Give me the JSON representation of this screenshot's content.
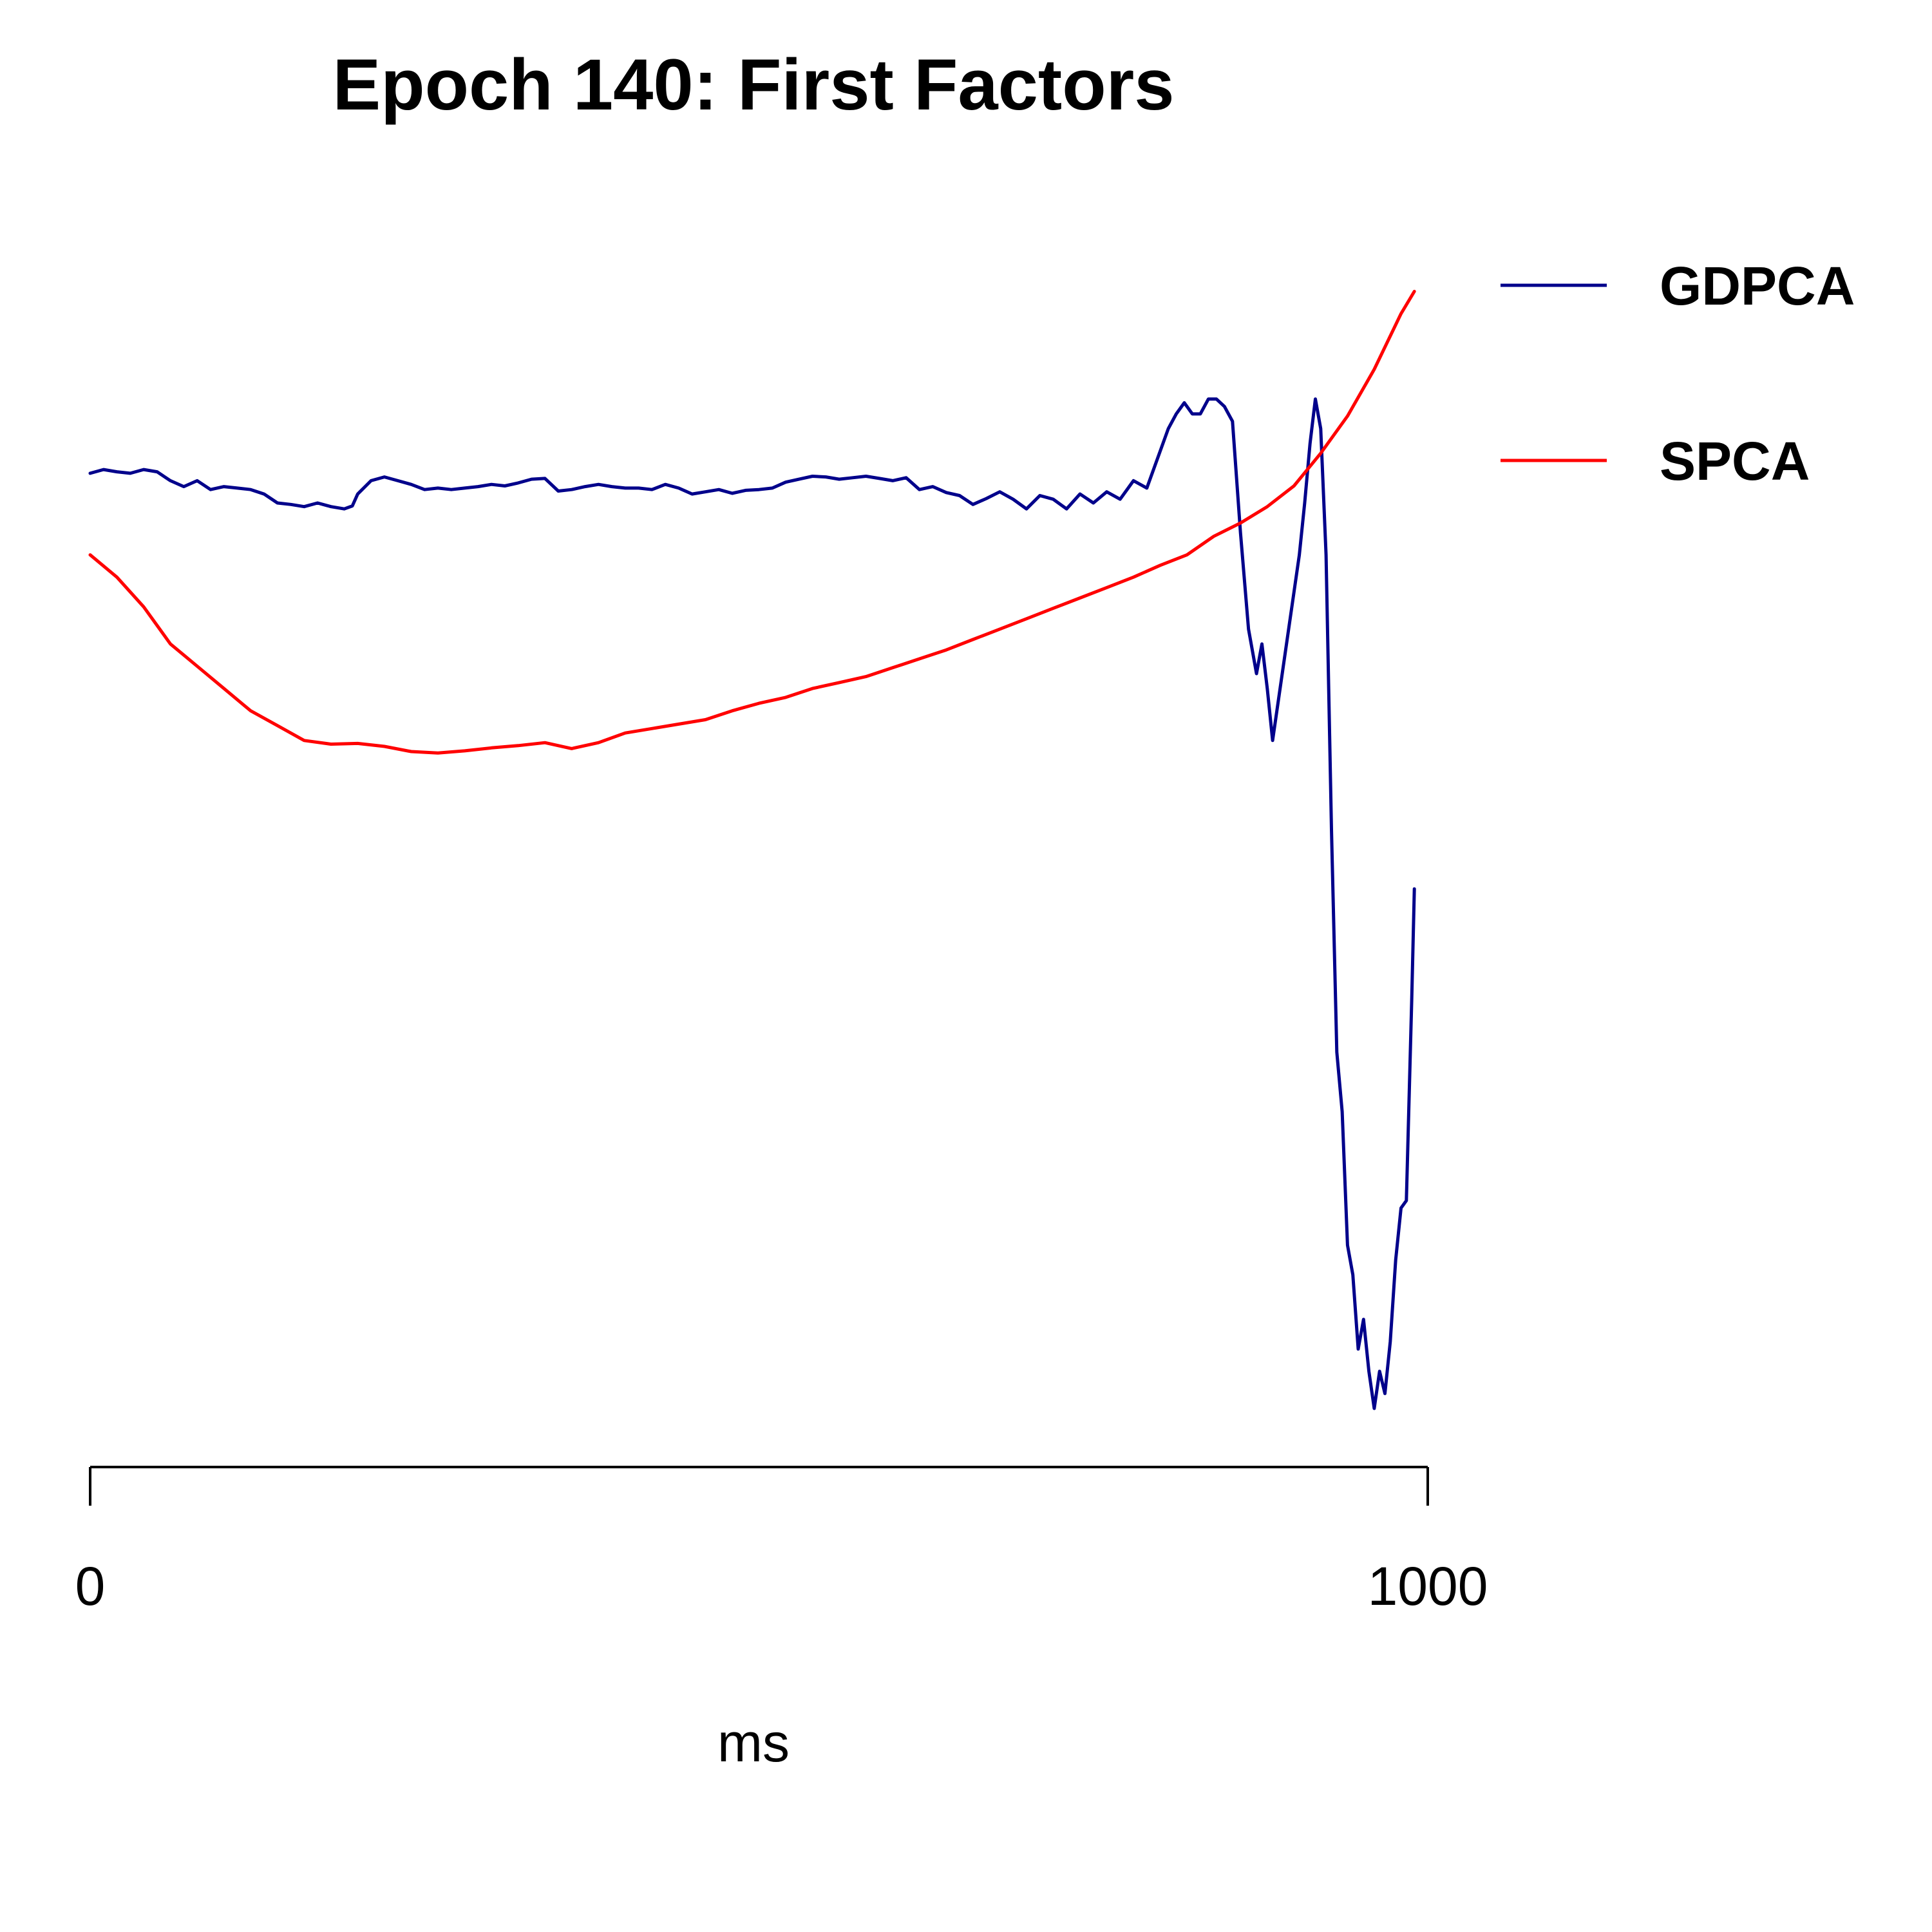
{
  "chart_data": {
    "type": "line",
    "title": "Epoch 140: First Factors",
    "xlabel": "ms",
    "ylabel": "",
    "xlim": [
      0,
      1000
    ],
    "ylim": [
      -0.62,
      1.02
    ],
    "x_ticks": [
      0,
      1000
    ],
    "x_tick_labels": [
      "0",
      "1000"
    ],
    "y_axis_shown": false,
    "grid": false,
    "legend": "right",
    "series": [
      {
        "name": "GDPCA",
        "color": "#00008B",
        "x": [
          0,
          10,
          20,
          30,
          40,
          50,
          60,
          70,
          80,
          90,
          100,
          110,
          120,
          130,
          140,
          150,
          160,
          170,
          180,
          190,
          196,
          200,
          210,
          220,
          230,
          240,
          250,
          260,
          270,
          280,
          290,
          300,
          310,
          320,
          330,
          340,
          350,
          360,
          370,
          380,
          390,
          400,
          410,
          420,
          430,
          440,
          450,
          460,
          470,
          480,
          490,
          500,
          510,
          520,
          530,
          540,
          550,
          560,
          570,
          580,
          590,
          600,
          610,
          620,
          630,
          640,
          650,
          660,
          670,
          680,
          690,
          700,
          710,
          720,
          730,
          740,
          750,
          760,
          770,
          780,
          790,
          800,
          806,
          812,
          818,
          824,
          830,
          836,
          842,
          848,
          854,
          860,
          866,
          872,
          876,
          880,
          884,
          888,
          892,
          896,
          900,
          904,
          908,
          912,
          916,
          920,
          924,
          928,
          932,
          936,
          940,
          944,
          948,
          952,
          956,
          960,
          964,
          968,
          972,
          976,
          980,
          984,
          988,
          990
        ],
        "y": [
          0.66,
          0.665,
          0.662,
          0.66,
          0.665,
          0.662,
          0.65,
          0.642,
          0.65,
          0.638,
          0.642,
          0.64,
          0.638,
          0.632,
          0.62,
          0.618,
          0.615,
          0.62,
          0.615,
          0.612,
          0.616,
          0.632,
          0.65,
          0.655,
          0.65,
          0.645,
          0.638,
          0.64,
          0.638,
          0.64,
          0.642,
          0.645,
          0.643,
          0.647,
          0.652,
          0.653,
          0.636,
          0.638,
          0.642,
          0.645,
          0.642,
          0.64,
          0.64,
          0.638,
          0.645,
          0.64,
          0.632,
          0.635,
          0.638,
          0.633,
          0.637,
          0.638,
          0.64,
          0.648,
          0.652,
          0.656,
          0.655,
          0.652,
          0.654,
          0.656,
          0.653,
          0.65,
          0.654,
          0.638,
          0.642,
          0.634,
          0.63,
          0.618,
          0.626,
          0.635,
          0.625,
          0.612,
          0.63,
          0.625,
          0.612,
          0.632,
          0.62,
          0.635,
          0.625,
          0.65,
          0.64,
          0.69,
          0.72,
          0.74,
          0.755,
          0.74,
          0.74,
          0.76,
          0.76,
          0.75,
          0.73,
          0.58,
          0.45,
          0.39,
          0.43,
          0.37,
          0.3,
          0.35,
          0.4,
          0.45,
          0.5,
          0.55,
          0.62,
          0.7,
          0.76,
          0.72,
          0.55,
          0.18,
          -0.12,
          -0.2,
          -0.38,
          -0.42,
          -0.52,
          -0.48,
          -0.55,
          -0.6,
          -0.55,
          -0.58,
          -0.51,
          -0.4,
          -0.33,
          -0.32,
          -0.05,
          0.1
        ]
      },
      {
        "name": "SPCA",
        "color": "#FF0000",
        "x": [
          0,
          20,
          40,
          60,
          80,
          100,
          120,
          140,
          160,
          180,
          200,
          220,
          240,
          260,
          280,
          300,
          320,
          340,
          360,
          380,
          400,
          420,
          440,
          460,
          480,
          500,
          520,
          540,
          560,
          580,
          600,
          620,
          640,
          660,
          680,
          700,
          720,
          740,
          760,
          780,
          800,
          820,
          840,
          860,
          880,
          900,
          920,
          940,
          960,
          980,
          990
        ],
        "y": [
          0.55,
          0.52,
          0.48,
          0.43,
          0.4,
          0.37,
          0.34,
          0.32,
          0.3,
          0.295,
          0.296,
          0.292,
          0.285,
          0.283,
          0.286,
          0.29,
          0.293,
          0.297,
          0.289,
          0.297,
          0.31,
          0.316,
          0.322,
          0.328,
          0.34,
          0.35,
          0.358,
          0.37,
          0.378,
          0.386,
          0.398,
          0.41,
          0.422,
          0.436,
          0.45,
          0.464,
          0.478,
          0.492,
          0.506,
          0.52,
          0.536,
          0.55,
          0.575,
          0.593,
          0.615,
          0.643,
          0.687,
          0.737,
          0.8,
          0.875,
          0.905
        ]
      }
    ]
  }
}
